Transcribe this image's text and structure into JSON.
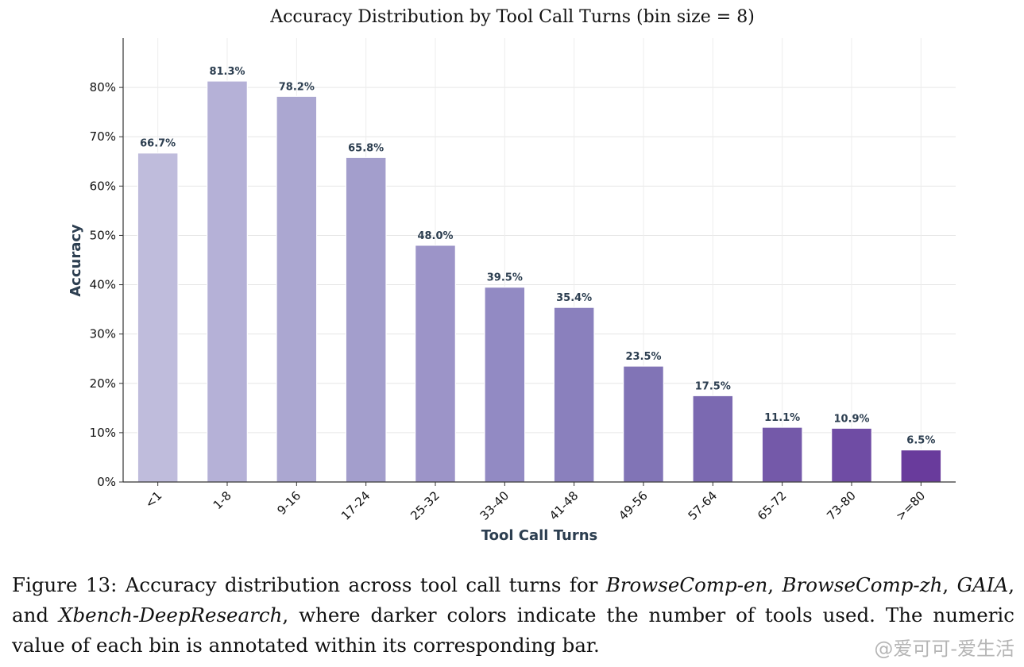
{
  "chart_data": {
    "type": "bar",
    "title": "Accuracy Distribution by Tool Call Turns (bin size = 8)",
    "xlabel": "Tool Call Turns",
    "ylabel": "Accuracy",
    "categories": [
      "<1",
      "1-8",
      "9-16",
      "17-24",
      "25-32",
      "33-40",
      "41-48",
      "49-56",
      "57-64",
      "65-72",
      "73-80",
      ">=80"
    ],
    "values": [
      66.7,
      81.3,
      78.2,
      65.8,
      48.0,
      39.5,
      35.4,
      23.5,
      17.5,
      11.1,
      10.9,
      6.5
    ],
    "value_labels": [
      "66.7%",
      "81.3%",
      "78.2%",
      "65.8%",
      "48.0%",
      "39.5%",
      "35.4%",
      "23.5%",
      "17.5%",
      "11.1%",
      "10.9%",
      "6.5%"
    ],
    "ylim": [
      0,
      90
    ],
    "yticks": [
      0,
      10,
      20,
      30,
      40,
      50,
      60,
      70,
      80
    ],
    "ytick_labels": [
      "0%",
      "10%",
      "20%",
      "30%",
      "40%",
      "50%",
      "60%",
      "70%",
      "80%"
    ],
    "grid": true,
    "colors": [
      "#bfbcdc",
      "#b5b1d7",
      "#aba7d1",
      "#a39ecc",
      "#9c94c8",
      "#928ac3",
      "#8a80bd",
      "#8174b6",
      "#7b69b1",
      "#7459a9",
      "#6f4ca4",
      "#693b9c"
    ]
  },
  "caption": {
    "prefix": "Figure 13:  Accuracy distribution across tool call turns for ",
    "dataset_1": "BrowseComp-en",
    "sep_1": ", ",
    "dataset_2": "BrowseComp-zh",
    "sep_2": ", ",
    "dataset_3": "GAIA",
    "sep_3": ", and ",
    "dataset_4": "Xbench-DeepResearch",
    "suffix": ", where darker colors indicate the number of tools used. The numeric value of each bin is annotated within its corresponding bar."
  },
  "watermark": "@爱可可-爱生活"
}
